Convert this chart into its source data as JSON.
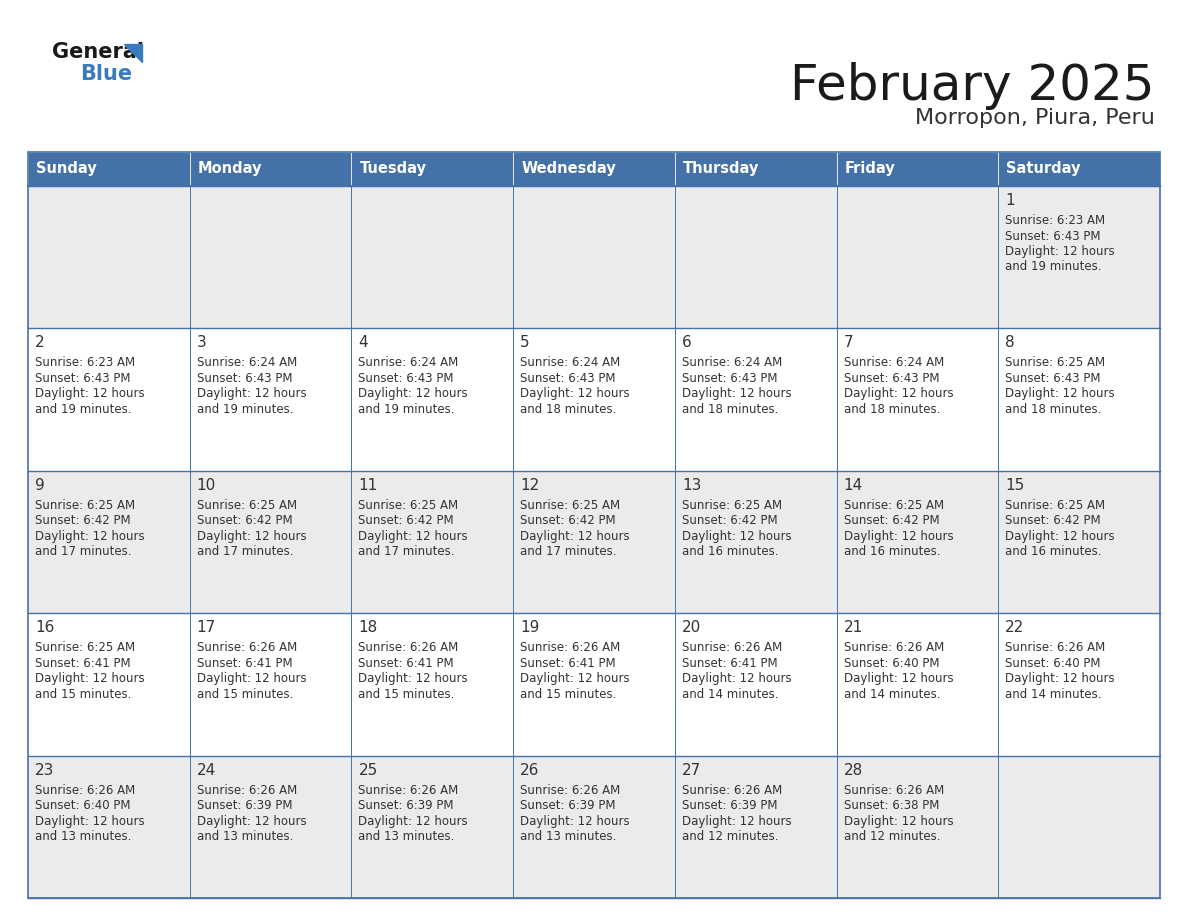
{
  "title": "February 2025",
  "subtitle": "Morropon, Piura, Peru",
  "header_bg": "#4472a8",
  "header_text": "#ffffff",
  "cell_bg_odd": "#ebebeb",
  "cell_bg_even": "#ffffff",
  "border_color": "#4472a8",
  "border_light": "#b0c0d8",
  "day_headers": [
    "Sunday",
    "Monday",
    "Tuesday",
    "Wednesday",
    "Thursday",
    "Friday",
    "Saturday"
  ],
  "title_color": "#1a1a1a",
  "subtitle_color": "#333333",
  "day_num_color": "#333333",
  "text_color": "#333333",
  "logo_general_color": "#1a1a1a",
  "logo_blue_color": "#3a7bbf",
  "weeks": [
    [
      {
        "date": "",
        "sunrise": "",
        "sunset": "",
        "daylight_line1": "",
        "daylight_line2": ""
      },
      {
        "date": "",
        "sunrise": "",
        "sunset": "",
        "daylight_line1": "",
        "daylight_line2": ""
      },
      {
        "date": "",
        "sunrise": "",
        "sunset": "",
        "daylight_line1": "",
        "daylight_line2": ""
      },
      {
        "date": "",
        "sunrise": "",
        "sunset": "",
        "daylight_line1": "",
        "daylight_line2": ""
      },
      {
        "date": "",
        "sunrise": "",
        "sunset": "",
        "daylight_line1": "",
        "daylight_line2": ""
      },
      {
        "date": "",
        "sunrise": "",
        "sunset": "",
        "daylight_line1": "",
        "daylight_line2": ""
      },
      {
        "date": "1",
        "sunrise": "6:23 AM",
        "sunset": "6:43 PM",
        "daylight_line1": "Daylight: 12 hours",
        "daylight_line2": "and 19 minutes."
      }
    ],
    [
      {
        "date": "2",
        "sunrise": "6:23 AM",
        "sunset": "6:43 PM",
        "daylight_line1": "Daylight: 12 hours",
        "daylight_line2": "and 19 minutes."
      },
      {
        "date": "3",
        "sunrise": "6:24 AM",
        "sunset": "6:43 PM",
        "daylight_line1": "Daylight: 12 hours",
        "daylight_line2": "and 19 minutes."
      },
      {
        "date": "4",
        "sunrise": "6:24 AM",
        "sunset": "6:43 PM",
        "daylight_line1": "Daylight: 12 hours",
        "daylight_line2": "and 19 minutes."
      },
      {
        "date": "5",
        "sunrise": "6:24 AM",
        "sunset": "6:43 PM",
        "daylight_line1": "Daylight: 12 hours",
        "daylight_line2": "and 18 minutes."
      },
      {
        "date": "6",
        "sunrise": "6:24 AM",
        "sunset": "6:43 PM",
        "daylight_line1": "Daylight: 12 hours",
        "daylight_line2": "and 18 minutes."
      },
      {
        "date": "7",
        "sunrise": "6:24 AM",
        "sunset": "6:43 PM",
        "daylight_line1": "Daylight: 12 hours",
        "daylight_line2": "and 18 minutes."
      },
      {
        "date": "8",
        "sunrise": "6:25 AM",
        "sunset": "6:43 PM",
        "daylight_line1": "Daylight: 12 hours",
        "daylight_line2": "and 18 minutes."
      }
    ],
    [
      {
        "date": "9",
        "sunrise": "6:25 AM",
        "sunset": "6:42 PM",
        "daylight_line1": "Daylight: 12 hours",
        "daylight_line2": "and 17 minutes."
      },
      {
        "date": "10",
        "sunrise": "6:25 AM",
        "sunset": "6:42 PM",
        "daylight_line1": "Daylight: 12 hours",
        "daylight_line2": "and 17 minutes."
      },
      {
        "date": "11",
        "sunrise": "6:25 AM",
        "sunset": "6:42 PM",
        "daylight_line1": "Daylight: 12 hours",
        "daylight_line2": "and 17 minutes."
      },
      {
        "date": "12",
        "sunrise": "6:25 AM",
        "sunset": "6:42 PM",
        "daylight_line1": "Daylight: 12 hours",
        "daylight_line2": "and 17 minutes."
      },
      {
        "date": "13",
        "sunrise": "6:25 AM",
        "sunset": "6:42 PM",
        "daylight_line1": "Daylight: 12 hours",
        "daylight_line2": "and 16 minutes."
      },
      {
        "date": "14",
        "sunrise": "6:25 AM",
        "sunset": "6:42 PM",
        "daylight_line1": "Daylight: 12 hours",
        "daylight_line2": "and 16 minutes."
      },
      {
        "date": "15",
        "sunrise": "6:25 AM",
        "sunset": "6:42 PM",
        "daylight_line1": "Daylight: 12 hours",
        "daylight_line2": "and 16 minutes."
      }
    ],
    [
      {
        "date": "16",
        "sunrise": "6:25 AM",
        "sunset": "6:41 PM",
        "daylight_line1": "Daylight: 12 hours",
        "daylight_line2": "and 15 minutes."
      },
      {
        "date": "17",
        "sunrise": "6:26 AM",
        "sunset": "6:41 PM",
        "daylight_line1": "Daylight: 12 hours",
        "daylight_line2": "and 15 minutes."
      },
      {
        "date": "18",
        "sunrise": "6:26 AM",
        "sunset": "6:41 PM",
        "daylight_line1": "Daylight: 12 hours",
        "daylight_line2": "and 15 minutes."
      },
      {
        "date": "19",
        "sunrise": "6:26 AM",
        "sunset": "6:41 PM",
        "daylight_line1": "Daylight: 12 hours",
        "daylight_line2": "and 15 minutes."
      },
      {
        "date": "20",
        "sunrise": "6:26 AM",
        "sunset": "6:41 PM",
        "daylight_line1": "Daylight: 12 hours",
        "daylight_line2": "and 14 minutes."
      },
      {
        "date": "21",
        "sunrise": "6:26 AM",
        "sunset": "6:40 PM",
        "daylight_line1": "Daylight: 12 hours",
        "daylight_line2": "and 14 minutes."
      },
      {
        "date": "22",
        "sunrise": "6:26 AM",
        "sunset": "6:40 PM",
        "daylight_line1": "Daylight: 12 hours",
        "daylight_line2": "and 14 minutes."
      }
    ],
    [
      {
        "date": "23",
        "sunrise": "6:26 AM",
        "sunset": "6:40 PM",
        "daylight_line1": "Daylight: 12 hours",
        "daylight_line2": "and 13 minutes."
      },
      {
        "date": "24",
        "sunrise": "6:26 AM",
        "sunset": "6:39 PM",
        "daylight_line1": "Daylight: 12 hours",
        "daylight_line2": "and 13 minutes."
      },
      {
        "date": "25",
        "sunrise": "6:26 AM",
        "sunset": "6:39 PM",
        "daylight_line1": "Daylight: 12 hours",
        "daylight_line2": "and 13 minutes."
      },
      {
        "date": "26",
        "sunrise": "6:26 AM",
        "sunset": "6:39 PM",
        "daylight_line1": "Daylight: 12 hours",
        "daylight_line2": "and 13 minutes."
      },
      {
        "date": "27",
        "sunrise": "6:26 AM",
        "sunset": "6:39 PM",
        "daylight_line1": "Daylight: 12 hours",
        "daylight_line2": "and 12 minutes."
      },
      {
        "date": "28",
        "sunrise": "6:26 AM",
        "sunset": "6:38 PM",
        "daylight_line1": "Daylight: 12 hours",
        "daylight_line2": "and 12 minutes."
      },
      {
        "date": "",
        "sunrise": "",
        "sunset": "",
        "daylight_line1": "",
        "daylight_line2": ""
      }
    ]
  ]
}
